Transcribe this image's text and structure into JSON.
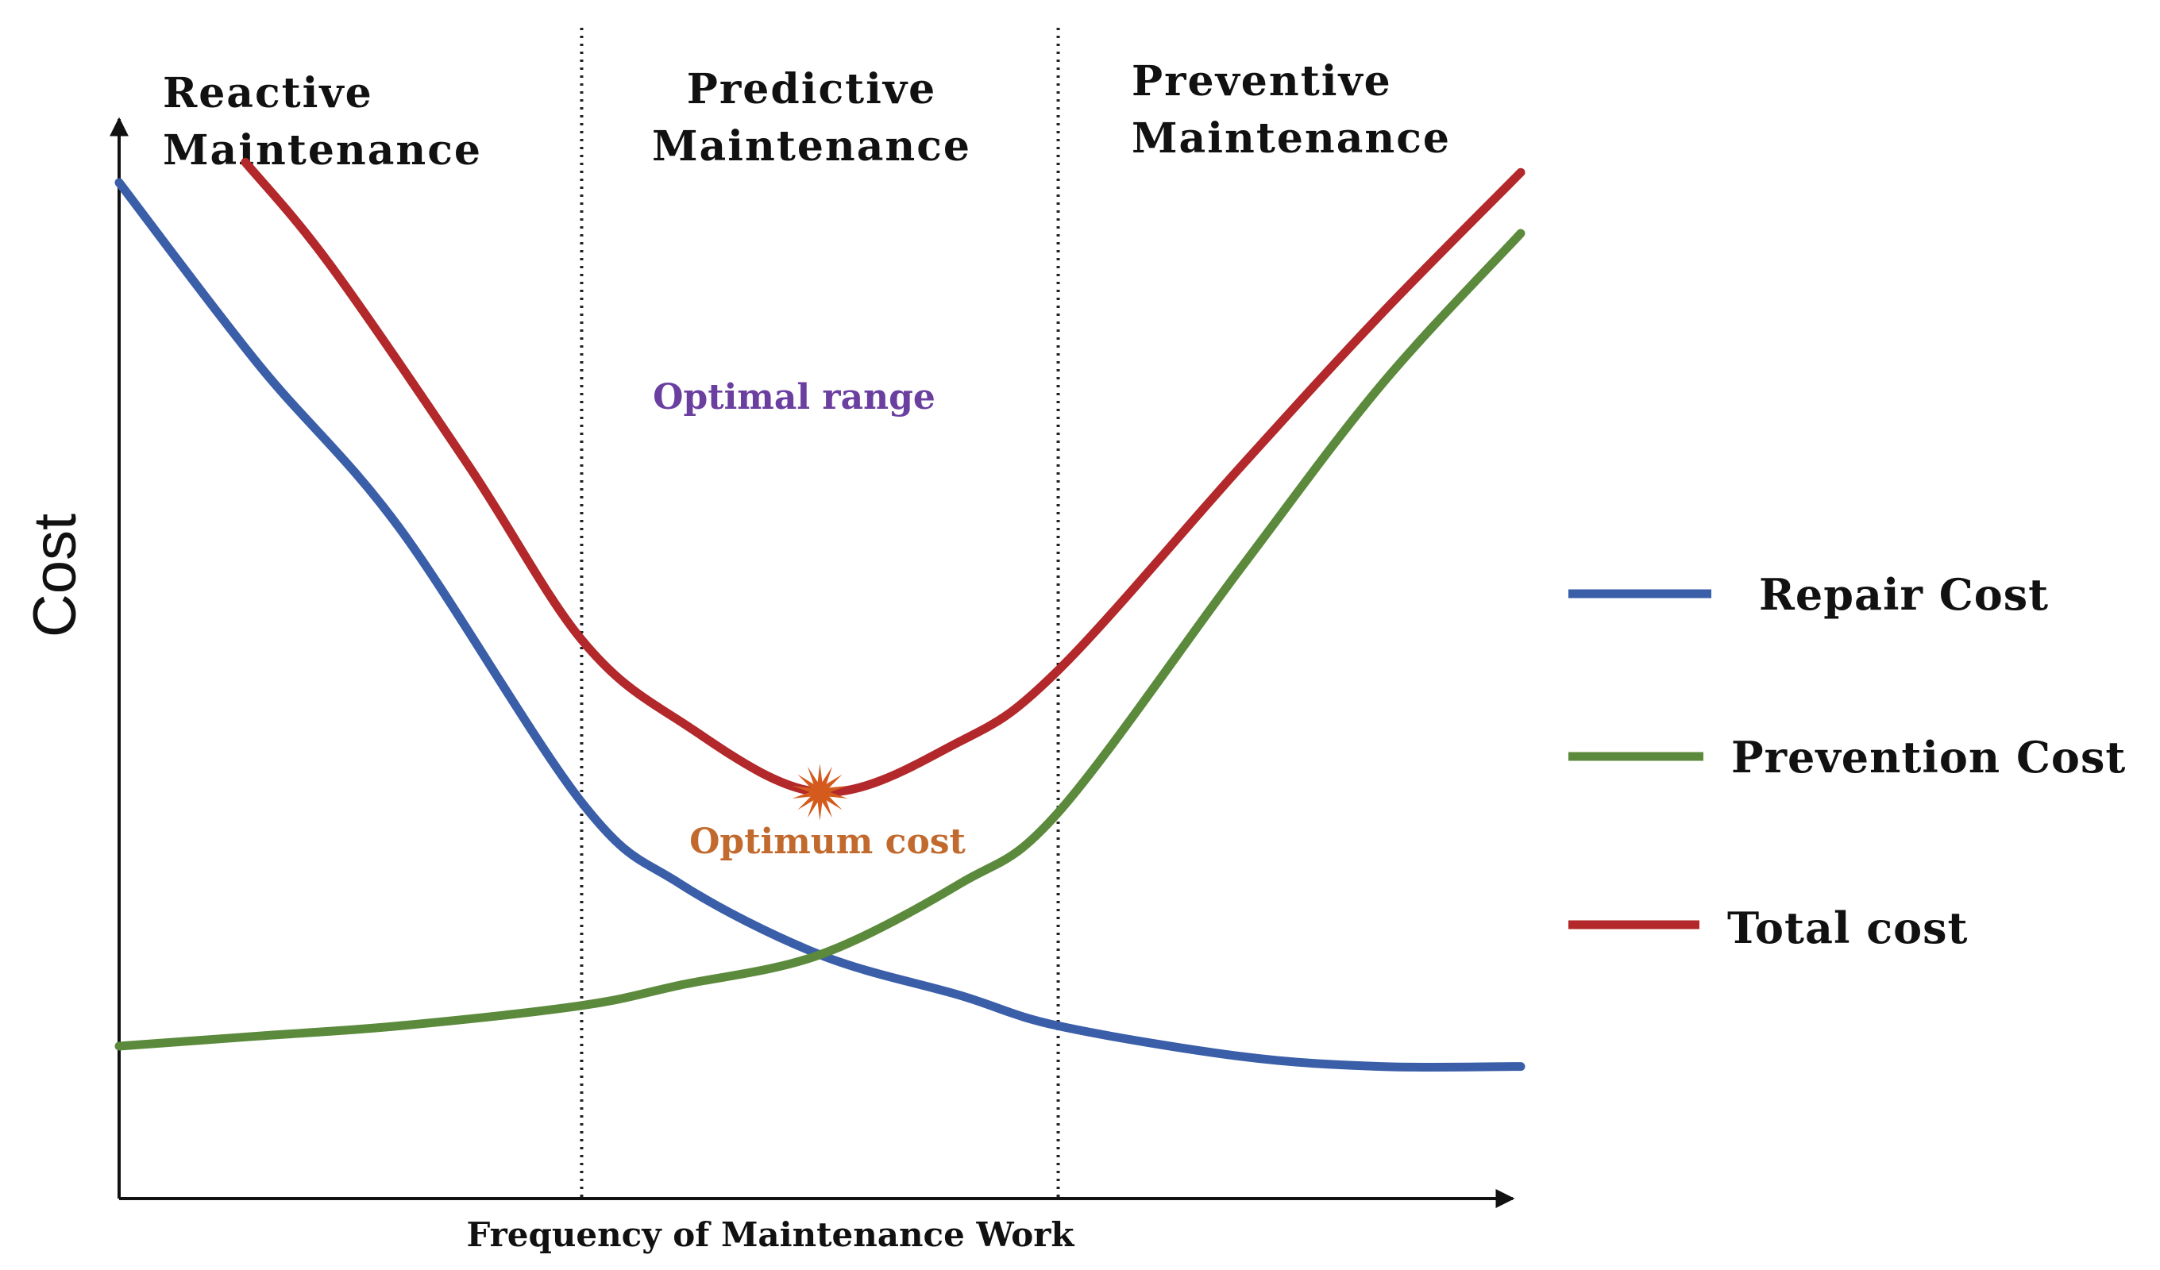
{
  "chart_data": {
    "type": "line",
    "xlabel": "Frequency of Maintenance Work",
    "ylabel": "Cost",
    "xlim": [
      0,
      100
    ],
    "ylim": [
      0,
      100
    ],
    "grid": false,
    "legend_position": "right",
    "regions": [
      {
        "lines": [
          "Reactive",
          "Maintenance"
        ],
        "x_start": 0,
        "x_end": 33
      },
      {
        "lines": [
          "Predictive",
          "Maintenance"
        ],
        "x_start": 33,
        "x_end": 67
      },
      {
        "lines": [
          "Preventive",
          "Maintenance"
        ],
        "x_start": 67,
        "x_end": 100
      }
    ],
    "dividers_x": [
      33,
      67
    ],
    "series": [
      {
        "name": "Repair Cost",
        "color": "#3a5ea8",
        "x": [
          0,
          10,
          20,
          33,
          40,
          50,
          60,
          67,
          80,
          90,
          100
        ],
        "y": [
          100,
          82,
          66,
          39,
          31,
          24,
          20,
          17,
          14,
          13,
          13
        ]
      },
      {
        "name": "Prevention Cost",
        "color": "#5c8a3c",
        "x": [
          0,
          10,
          20,
          33,
          40,
          50,
          60,
          67,
          80,
          90,
          100
        ],
        "y": [
          15,
          16,
          17,
          19,
          21,
          24,
          31,
          38,
          62,
          80,
          95
        ]
      },
      {
        "name": "Total cost",
        "color": "#b3282a",
        "x": [
          9,
          15,
          25,
          33,
          40,
          50,
          60,
          67,
          80,
          90,
          100
        ],
        "y": [
          102,
          92,
          72,
          55,
          47,
          40,
          45,
          52,
          72,
          87,
          101
        ]
      }
    ],
    "annotations": [
      {
        "text": "Optimal range",
        "color": "#6b3fa0",
        "x": 48,
        "y": 79
      },
      {
        "text": "Optimum cost",
        "color": "#c26a2e",
        "x": 50,
        "y": 35
      }
    ],
    "optimum_point": {
      "x": 50,
      "y": 40,
      "color": "#d45a1e"
    }
  }
}
